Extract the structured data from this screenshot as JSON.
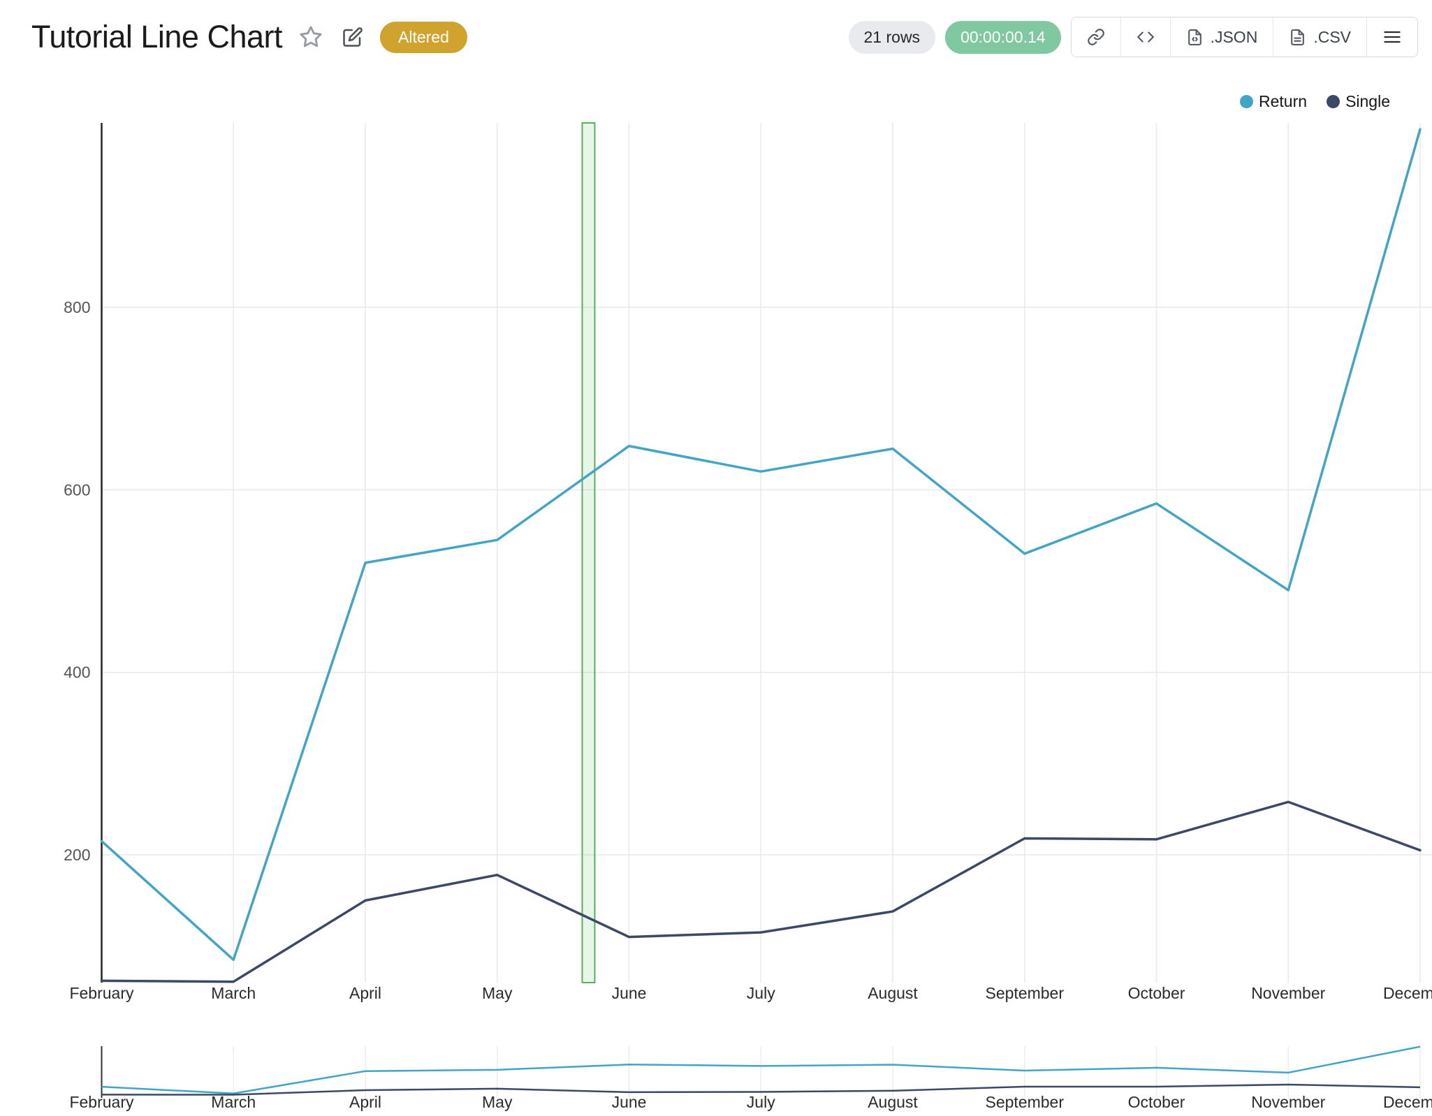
{
  "header": {
    "title": "Tutorial Line Chart",
    "badge": "Altered",
    "rows_label": "21 rows",
    "time_label": "00:00:00.14",
    "export_json_label": ".JSON",
    "export_csv_label": ".CSV"
  },
  "legend": {
    "items": [
      {
        "label": "Return",
        "color": "#44a4c6"
      },
      {
        "label": "Single",
        "color": "#3b4866"
      }
    ]
  },
  "colors": {
    "badge_gold": "#cfa32e",
    "timer_green": "#7fc8a0",
    "rows_pill_bg": "#e8eaed",
    "selection_green": "#58b05c",
    "gridline": "#e9e9e9",
    "axis": "#222222"
  },
  "chart_data": {
    "type": "line",
    "title": "Tutorial Line Chart",
    "categories": [
      "February",
      "March",
      "April",
      "May",
      "June",
      "July",
      "August",
      "September",
      "October",
      "November",
      "December"
    ],
    "series": [
      {
        "name": "Return",
        "color": "#44a4c6",
        "values": [
          215,
          85,
          520,
          545,
          648,
          620,
          645,
          530,
          585,
          490,
          995
        ]
      },
      {
        "name": "Single",
        "color": "#3b4866",
        "values": [
          62,
          61,
          150,
          178,
          110,
          115,
          138,
          218,
          217,
          258,
          205
        ]
      }
    ],
    "xlabel": "",
    "ylabel": "",
    "y_ticks": [
      200,
      400,
      600,
      800
    ],
    "ylim": [
      60,
      1002
    ],
    "grid": true,
    "legend_position": "top-right",
    "highlight_band": {
      "between": [
        "May",
        "June"
      ],
      "x_start_fraction": 0.3645,
      "x_end_fraction": 0.374
    },
    "navigator": {
      "shown": true,
      "same_categories": true
    }
  }
}
